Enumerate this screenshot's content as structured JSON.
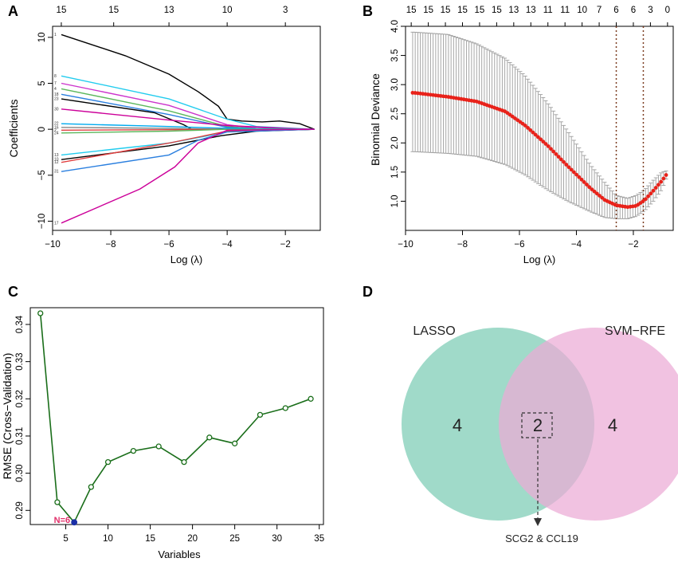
{
  "panels": {
    "a": "A",
    "b": "B",
    "c": "C",
    "d": "D"
  },
  "chart_data": [
    {
      "id": "lasso-coefficient-paths",
      "type": "line",
      "xlabel": "Log (λ)",
      "ylabel": "Coefficients",
      "xlim": [
        -10.0,
        -0.8
      ],
      "ylim": [
        -11,
        11.2
      ],
      "x_ticks": [
        -10,
        -8,
        -6,
        -4,
        -2
      ],
      "y_ticks": [
        -10,
        -5,
        0,
        5,
        10
      ],
      "top_ticks": {
        "positions": [
          -9.7,
          -7.9,
          -6.0,
          -4.0,
          -2.0
        ],
        "labels": [
          "15",
          "15",
          "13",
          "10",
          "3"
        ]
      },
      "series": [
        {
          "name": "1",
          "color": "#000000",
          "x": [
            -9.7,
            -7.5,
            -6,
            -5,
            -4.3,
            -4,
            -3.5,
            -2.8,
            -2.2,
            -1.5,
            -1
          ],
          "y": [
            10.3,
            8,
            6,
            4.1,
            2.5,
            1.1,
            0.9,
            0.8,
            0.9,
            0.6,
            0
          ]
        },
        {
          "name": "8",
          "color": "#22ccee",
          "x": [
            -9.7,
            -6,
            -4,
            -3,
            -1
          ],
          "y": [
            5.8,
            3.3,
            1.1,
            0.3,
            0
          ]
        },
        {
          "name": "7",
          "color": "#cc33cc",
          "x": [
            -9.7,
            -6,
            -4,
            -3,
            -1
          ],
          "y": [
            5.0,
            2.6,
            0.5,
            0.1,
            0
          ]
        },
        {
          "name": "4",
          "color": "#5cb85c",
          "x": [
            -9.7,
            -6,
            -4,
            -3,
            -1
          ],
          "y": [
            4.4,
            2.0,
            0.3,
            0.05,
            0
          ]
        },
        {
          "name": "18",
          "color": "#2a7fdf",
          "x": [
            -9.7,
            -6,
            -4,
            -3,
            -1
          ],
          "y": [
            3.8,
            1.6,
            0.2,
            0.05,
            0
          ]
        },
        {
          "name": "23",
          "color": "#000000",
          "x": [
            -9.7,
            -6.5,
            -5.5,
            -5.2,
            -4
          ],
          "y": [
            3.3,
            1.8,
            0.5,
            0,
            0
          ]
        },
        {
          "name": "30",
          "color": "#cc0099",
          "x": [
            -9.7,
            -6,
            -4,
            -2,
            -1
          ],
          "y": [
            2.2,
            1.0,
            0.4,
            0.1,
            0
          ]
        },
        {
          "name": "22",
          "color": "#00aaee",
          "x": [
            -9.7,
            -6,
            -4,
            -1
          ],
          "y": [
            0.6,
            0.3,
            0.1,
            0
          ]
        },
        {
          "name": "16",
          "color": "#888888",
          "x": [
            -9.7,
            -6,
            -4,
            -1
          ],
          "y": [
            0.2,
            0.1,
            0,
            0
          ]
        },
        {
          "name": "2",
          "color": "#e04040",
          "x": [
            -9.7,
            -6,
            -4,
            -1
          ],
          "y": [
            -0.1,
            -0.05,
            0,
            0
          ]
        },
        {
          "name": "24",
          "color": "#5cb85c",
          "x": [
            -9.7,
            -6,
            -4,
            -1
          ],
          "y": [
            -0.4,
            -0.2,
            0,
            0
          ]
        },
        {
          "name": "13",
          "color": "#22ccee",
          "x": [
            -9.7,
            -6,
            -4.5,
            -4,
            -1
          ],
          "y": [
            -2.8,
            -1.5,
            -0.6,
            -0.2,
            0
          ]
        },
        {
          "name": "10",
          "color": "#000000",
          "x": [
            -9.7,
            -6,
            -4.2,
            -3,
            -1
          ],
          "y": [
            -3.3,
            -1.8,
            -0.7,
            -0.2,
            0
          ]
        },
        {
          "name": "12",
          "color": "#e04040",
          "x": [
            -9.7,
            -6,
            -4,
            -1
          ],
          "y": [
            -3.6,
            -1.5,
            -0.2,
            0
          ]
        },
        {
          "name": "31",
          "color": "#2a7fdf",
          "x": [
            -9.7,
            -6,
            -5,
            -4,
            -1
          ],
          "y": [
            -4.6,
            -2.8,
            -1.2,
            -0.3,
            0
          ]
        },
        {
          "name": "17",
          "color": "#cc0099",
          "x": [
            -9.7,
            -7,
            -5.8,
            -5,
            -4,
            -1
          ],
          "y": [
            -10.2,
            -6.5,
            -4.1,
            -1.5,
            -0.1,
            0
          ]
        }
      ]
    },
    {
      "id": "binomial-deviance-cv",
      "type": "scatter",
      "xlabel": "Log (λ)",
      "ylabel": "Binomial Deviance",
      "xlim": [
        -10.0,
        -0.6
      ],
      "ylim": [
        0.5,
        4.0
      ],
      "x_ticks": [
        -10,
        -8,
        -6,
        -4,
        -2
      ],
      "y_ticks": [
        1.0,
        1.5,
        2.0,
        2.5,
        3.0,
        3.5,
        4.0
      ],
      "top_ticks": {
        "positions": [
          -9.8,
          -9.2,
          -8.6,
          -8.0,
          -7.4,
          -6.8,
          -6.2,
          -5.6,
          -5.0,
          -4.4,
          -3.8,
          -3.2,
          -2.6,
          -2.0,
          -1.4,
          -0.8
        ],
        "labels": [
          "15",
          "15",
          "15",
          "15",
          "15",
          "15",
          "13",
          "13",
          "11",
          "11",
          "10",
          "7",
          "6",
          "6",
          "3",
          "0"
        ]
      },
      "curve_knots": {
        "x": [
          -9.7,
          -8.5,
          -7.5,
          -6.5,
          -5.8,
          -5.0,
          -4.3,
          -3.5,
          -3.0,
          -2.6,
          -2.2,
          -1.9,
          -1.6,
          -1.3,
          -1.0,
          -0.85
        ],
        "mean": [
          2.86,
          2.79,
          2.71,
          2.54,
          2.3,
          1.95,
          1.6,
          1.22,
          1.02,
          0.93,
          0.9,
          0.92,
          1.02,
          1.18,
          1.35,
          1.45
        ],
        "lower": [
          1.85,
          1.82,
          1.77,
          1.63,
          1.45,
          1.19,
          1.0,
          0.82,
          0.72,
          0.7,
          0.7,
          0.74,
          0.84,
          1.0,
          1.2,
          1.38
        ],
        "upper": [
          3.9,
          3.86,
          3.7,
          3.45,
          3.15,
          2.68,
          2.2,
          1.62,
          1.32,
          1.1,
          1.05,
          1.1,
          1.2,
          1.36,
          1.5,
          1.52
        ]
      },
      "x_range_points": [
        -9.75,
        -0.85
      ],
      "n_points": 100,
      "vlines": [
        -2.6,
        -1.65
      ],
      "series_color": "#e8221a",
      "error_color": "#9e9e9e",
      "vline_color": "#7a3b1f"
    },
    {
      "id": "svm-rfe-rmse",
      "type": "line",
      "xlabel": "Variables",
      "ylabel": "RMSE (Cross−Validation)",
      "xlim": [
        0.8,
        35.5
      ],
      "ylim": [
        0.2862,
        0.3445
      ],
      "x_ticks": [
        5,
        10,
        15,
        20,
        25,
        30,
        35
      ],
      "y_ticks": [
        0.29,
        0.3,
        0.31,
        0.32,
        0.33,
        0.34
      ],
      "x": [
        2,
        4,
        6,
        8,
        10,
        13,
        16,
        19,
        22,
        25,
        28,
        31,
        34
      ],
      "y": [
        0.343,
        0.2922,
        0.2868,
        0.2963,
        0.303,
        0.306,
        0.3072,
        0.303,
        0.3096,
        0.308,
        0.3157,
        0.3175,
        0.32
      ],
      "line_color": "#1a6e1a",
      "best": {
        "x": 6,
        "y": 0.2868,
        "color": "#1a2fa6"
      },
      "annotation": "N=6",
      "annotation_color": "#e0306a"
    }
  ],
  "venn": {
    "left_label": "LASSO",
    "right_label": "SVM−RFE",
    "left_only": "4",
    "intersection": "2",
    "right_only": "4",
    "genes": "SCG2 & CCL19",
    "left_color": "#8fd3bf",
    "right_color": "#ecaad6"
  }
}
